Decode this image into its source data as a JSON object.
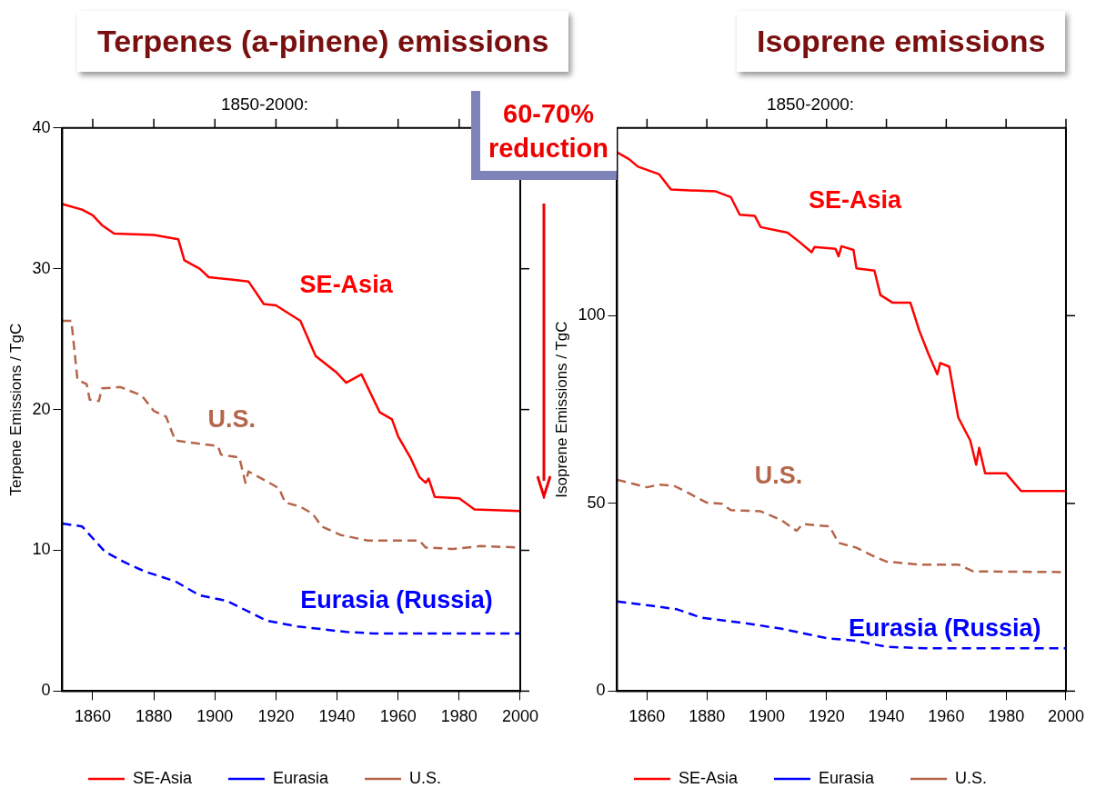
{
  "chart_data": [
    {
      "type": "line",
      "title": "Terpenes (a-pinene) emissions",
      "subtitle": "1850-2000:",
      "ylabel": "Terpene Emissions / TgC",
      "xlim": [
        1850,
        2000
      ],
      "xticks": [
        1860,
        1880,
        1900,
        1920,
        1940,
        1960,
        1980,
        2000
      ],
      "ylim": [
        0,
        40
      ],
      "yticks": [
        0,
        10,
        20,
        30,
        40
      ],
      "grid": false,
      "legend": "bottom",
      "marker": "none",
      "series": [
        {
          "name": "SE-Asia",
          "color": "#ff0000",
          "line_style": "solid",
          "x": [
            1850,
            1856.5,
            1860,
            1863,
            1867,
            1880,
            1888,
            1890,
            1895,
            1898,
            1911,
            1916,
            1920,
            1928,
            1933,
            1940,
            1943,
            1948,
            1954,
            1958,
            1960,
            1964,
            1967,
            1969,
            1970,
            1972,
            1980,
            1985,
            2000
          ],
          "values": [
            34.6,
            34.2,
            33.8,
            33.1,
            32.5,
            32.4,
            32.1,
            30.6,
            30.0,
            29.4,
            29.1,
            27.5,
            27.4,
            26.3,
            23.8,
            22.6,
            21.9,
            22.5,
            19.8,
            19.3,
            18.1,
            16.6,
            15.2,
            14.8,
            15.1,
            13.8,
            13.7,
            12.9,
            12.8
          ]
        },
        {
          "name": "Eurasia",
          "color": "#0000ff",
          "line_style": "dashed",
          "x": [
            1850,
            1856.5,
            1864,
            1870,
            1877,
            1887,
            1895,
            1904,
            1917,
            1927,
            1943,
            1952,
            2000
          ],
          "values": [
            11.9,
            11.7,
            9.9,
            9.2,
            8.5,
            7.8,
            6.8,
            6.4,
            5.0,
            4.6,
            4.2,
            4.1,
            4.1
          ]
        },
        {
          "name": "U.S.",
          "color": "#b5654a",
          "line_style": "dashed",
          "x": [
            1850,
            1853,
            1855,
            1858,
            1859,
            1862,
            1863,
            1869,
            1876,
            1880,
            1884,
            1887,
            1894,
            1901,
            1902,
            1908,
            1910,
            1911,
            1917,
            1921,
            1923,
            1928,
            1932,
            1935,
            1941,
            1950,
            1967,
            1969,
            1978,
            1987,
            2000
          ],
          "values": [
            26.3,
            26.3,
            22.1,
            21.8,
            20.7,
            20.6,
            21.5,
            21.6,
            21.0,
            19.9,
            19.5,
            17.8,
            17.6,
            17.4,
            16.8,
            16.6,
            14.8,
            15.6,
            14.9,
            14.4,
            13.4,
            13.1,
            12.6,
            11.7,
            11.1,
            10.7,
            10.7,
            10.2,
            10.1,
            10.3,
            10.2
          ]
        }
      ],
      "annotations": [
        "SE-Asia",
        "Eurasia (Russia)",
        "U.S.",
        "60-70% reduction"
      ]
    },
    {
      "type": "line",
      "title": "Isoprene emissions",
      "subtitle": "1850-2000:",
      "ylabel": "Isoprene Emissions / TgC",
      "xlim": [
        1850,
        2000
      ],
      "xticks": [
        1860,
        1880,
        1900,
        1920,
        1940,
        1960,
        1980,
        2000
      ],
      "ylim": [
        0,
        150
      ],
      "yticks": [
        0,
        50,
        100
      ],
      "grid": false,
      "legend": "bottom",
      "marker": "none",
      "series": [
        {
          "name": "SE-Asia",
          "color": "#ff0000",
          "line_style": "solid",
          "x": [
            1850,
            1854,
            1857,
            1864,
            1868,
            1883,
            1888,
            1891,
            1896,
            1898,
            1907,
            1911,
            1915,
            1916,
            1923,
            1924,
            1925,
            1929,
            1930,
            1936,
            1938,
            1942,
            1948,
            1951,
            1954,
            1957,
            1958,
            1961,
            1964,
            1968,
            1970,
            1971,
            1973,
            1980,
            1985,
            2000
          ],
          "values": [
            143.5,
            141.7,
            139.7,
            137.7,
            133.6,
            133.1,
            131.6,
            126.9,
            126.6,
            123.6,
            122.1,
            119.6,
            116.9,
            118.3,
            117.8,
            115.8,
            118.5,
            117.5,
            112.6,
            112.0,
            105.5,
            103.5,
            103.5,
            96.0,
            89.9,
            84.4,
            87.4,
            86.4,
            72.9,
            66.8,
            60.3,
            64.8,
            58.0,
            58.0,
            53.3,
            53.3
          ]
        },
        {
          "name": "Eurasia",
          "color": "#0000ff",
          "line_style": "dashed",
          "x": [
            1850,
            1861,
            1870,
            1878,
            1893,
            1905,
            1920,
            1930,
            1940,
            1954,
            2000
          ],
          "values": [
            23.9,
            22.8,
            21.8,
            19.6,
            18.1,
            16.6,
            14.1,
            13.4,
            11.8,
            11.4,
            11.4
          ]
        },
        {
          "name": "U.S.",
          "color": "#b5654a",
          "line_style": "dashed",
          "x": [
            1850,
            1860,
            1864,
            1869,
            1874,
            1880,
            1885,
            1888,
            1898,
            1905,
            1910,
            1912,
            1921,
            1924,
            1930,
            1935,
            1940,
            1951,
            1964,
            1969,
            2000
          ],
          "values": [
            56.3,
            54.3,
            55.0,
            54.7,
            52.7,
            50.2,
            49.9,
            48.2,
            47.9,
            45.5,
            42.7,
            44.5,
            43.9,
            39.5,
            38.2,
            36.2,
            34.5,
            33.7,
            33.7,
            31.9,
            31.7
          ]
        }
      ],
      "annotations": [
        "SE-Asia",
        "Eurasia (Russia)",
        "U.S."
      ]
    }
  ]
}
